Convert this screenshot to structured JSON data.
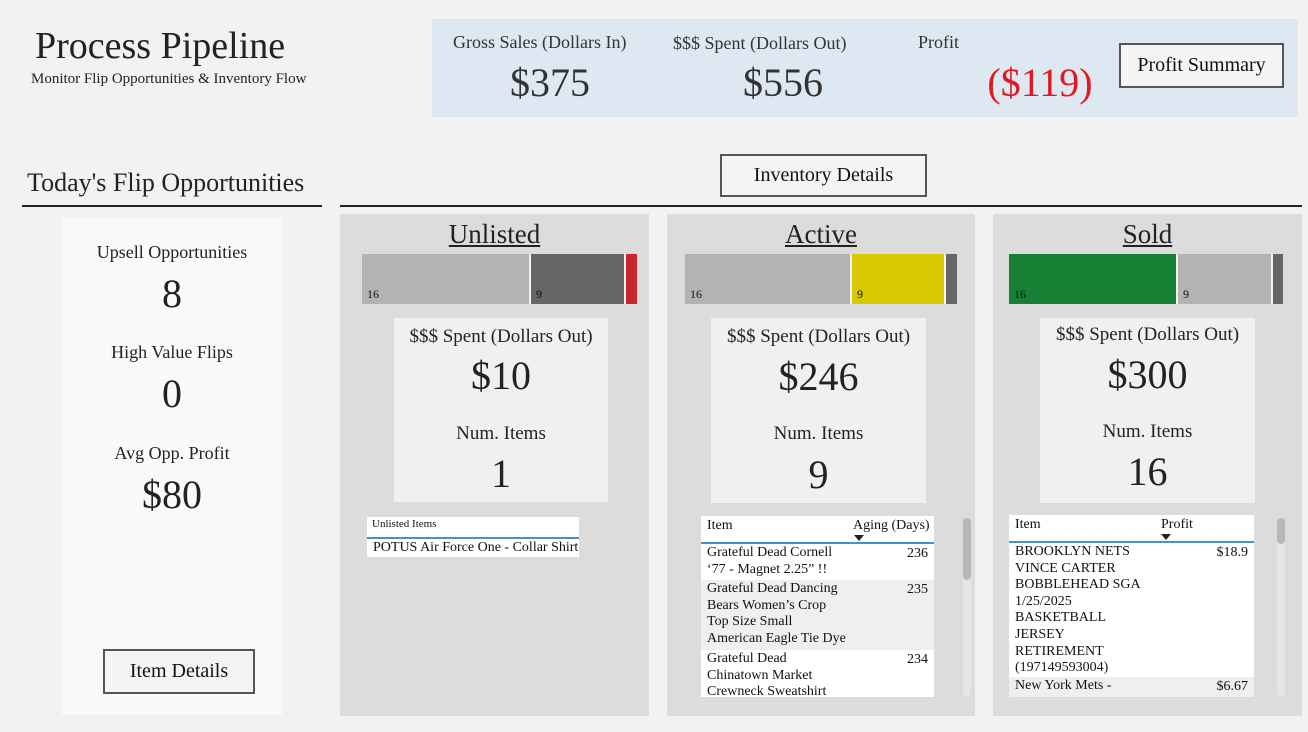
{
  "header": {
    "title": "Process Pipeline",
    "subtitle": "Monitor Flip Opportunities & Inventory Flow"
  },
  "kpis": {
    "gross_sales_label": "Gross Sales (Dollars In)",
    "gross_sales_value": "$375",
    "spent_label": "$$$ Spent (Dollars Out)",
    "spent_value": "$556",
    "profit_label": "Profit",
    "profit_value": "($119)",
    "profit_color": "#e0191e",
    "profit_summary_button": "Profit Summary"
  },
  "flip": {
    "title": "Today's Flip Opportunities",
    "upsell_label": "Upsell Opportunities",
    "upsell_value": "8",
    "high_value_label": "High Value Flips",
    "high_value_value": "0",
    "avg_profit_label": "Avg Opp. Profit",
    "avg_profit_value": "$80",
    "item_details_button": "Item Details"
  },
  "inventory": {
    "details_button": "Inventory Details",
    "unlisted": {
      "title": "Unlisted",
      "segments": [
        {
          "label": "16",
          "count": 16,
          "color": "#b3b3b3"
        },
        {
          "label": "9",
          "count": 9,
          "color": "#666666"
        },
        {
          "label": "",
          "count": 1,
          "color": "#c9252a"
        }
      ],
      "spent_label": "$$$ Spent (Dollars Out)",
      "spent_value": "$10",
      "items_label": "Num. Items",
      "items_value": "1",
      "table_header": "Unlisted Items",
      "rows": [
        "POTUS Air Force One - Collar Shirt"
      ]
    },
    "active": {
      "title": "Active",
      "segments": [
        {
          "label": "16",
          "count": 16,
          "color": "#b3b3b3"
        },
        {
          "label": "9",
          "count": 9,
          "color": "#d8c800"
        },
        {
          "label": "",
          "count": 1,
          "color": "#666666"
        }
      ],
      "spent_label": "$$$ Spent (Dollars Out)",
      "spent_value": "$246",
      "items_label": "Num. Items",
      "items_value": "9",
      "col_item": "Item",
      "col_aging": "Aging (Days)",
      "rows": [
        {
          "lines": [
            "Grateful Dead Cornell",
            "‘77 - Magnet 2.25” !!"
          ],
          "value": "236"
        },
        {
          "lines": [
            "Grateful Dead Dancing",
            "Bears Women’s Crop",
            "Top Size Small",
            "American Eagle Tie Dye"
          ],
          "value": "235"
        },
        {
          "lines": [
            "Grateful Dead",
            "Chinatown Market",
            "Crewneck Sweatshirt"
          ],
          "value": "234"
        }
      ]
    },
    "sold": {
      "title": "Sold",
      "segments": [
        {
          "label": "16",
          "count": 16,
          "color": "#178035"
        },
        {
          "label": "9",
          "count": 9,
          "color": "#b3b3b3"
        },
        {
          "label": "",
          "count": 1,
          "color": "#666666"
        }
      ],
      "spent_label": "$$$ Spent (Dollars Out)",
      "spent_value": "$300",
      "items_label": "Num. Items",
      "items_value": "16",
      "col_item": "Item",
      "col_profit": "Profit",
      "rows": [
        {
          "lines": [
            "BROOKLYN NETS",
            "VINCE CARTER",
            "BOBBLEHEAD SGA",
            "1/25/2025",
            "BASKETBALL",
            "JERSEY",
            "RETIREMENT",
            "(197149593004)"
          ],
          "value": "$18.9"
        },
        {
          "lines": [
            "New York Mets -"
          ],
          "value": "$6.67"
        }
      ]
    }
  }
}
